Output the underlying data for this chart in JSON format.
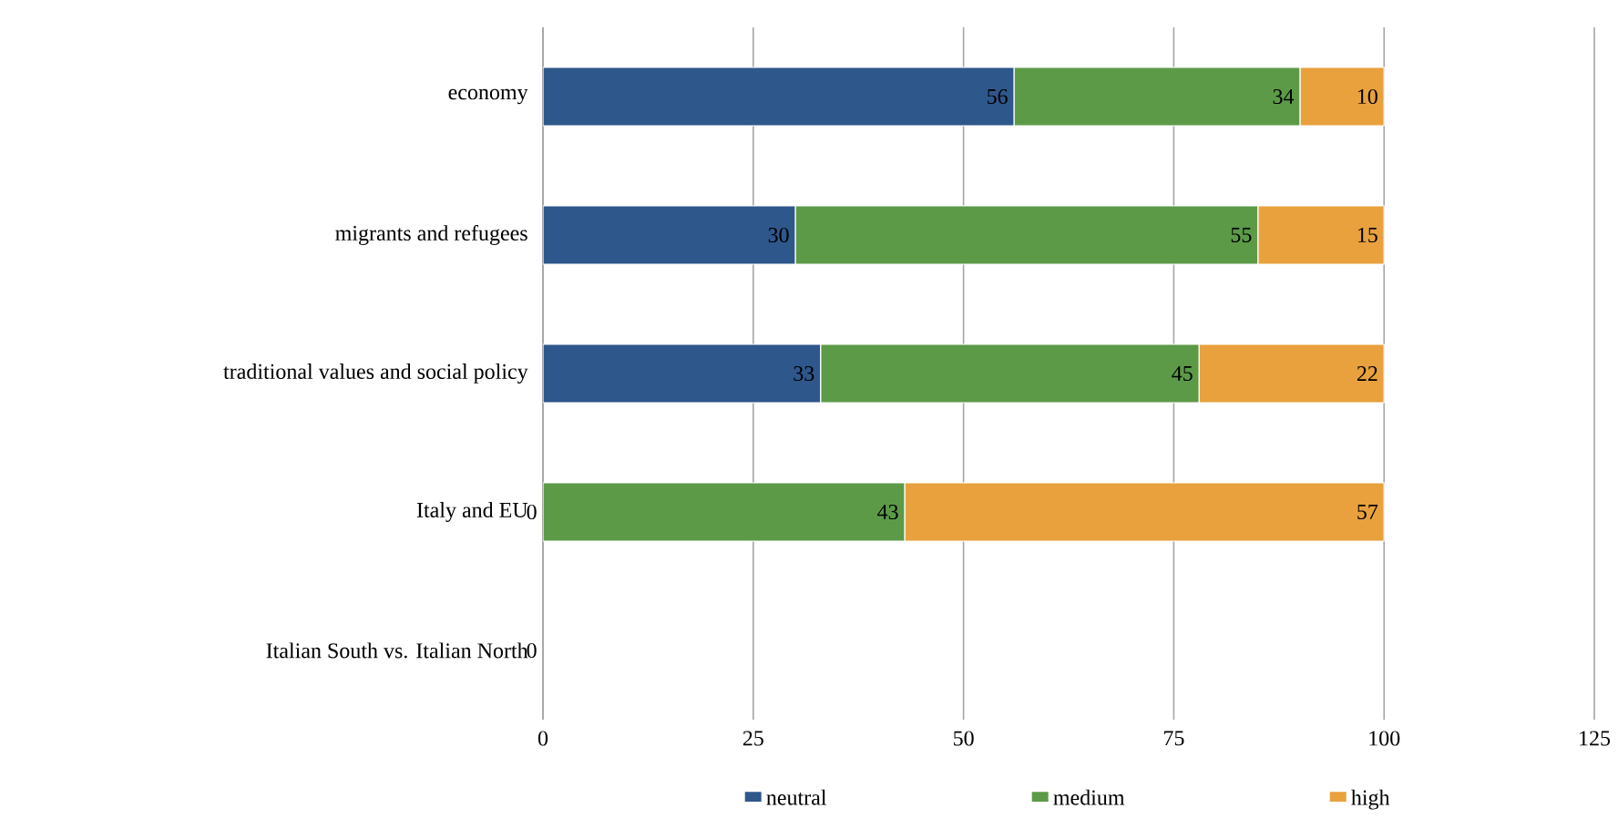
{
  "chart_data": {
    "type": "bar",
    "orientation": "horizontal",
    "stacked": true,
    "categories": [
      "economy",
      "migrants and refugees",
      "traditional values and social policy",
      "Italy and EU",
      "Italian South vs. Italian North"
    ],
    "series": [
      {
        "name": "neutral",
        "color": "#2e578c",
        "values": [
          56,
          30,
          33,
          0,
          0
        ],
        "value_labels": [
          "56",
          "30",
          "33",
          null,
          "0"
        ]
      },
      {
        "name": "medium",
        "color": "#5c9a48",
        "values": [
          34,
          55,
          45,
          43,
          0
        ],
        "value_labels": [
          "34",
          "55",
          "45",
          "43",
          null
        ]
      },
      {
        "name": "high",
        "color": "#e8a13d",
        "values": [
          10,
          15,
          22,
          57,
          0
        ],
        "value_labels": [
          "10",
          "15",
          "22",
          "57",
          null
        ]
      }
    ],
    "annotations": [
      {
        "text": "0",
        "x": 0,
        "y": "Italy and EU"
      }
    ],
    "xlim": [
      0,
      125
    ],
    "xticks": [
      0,
      25,
      50,
      75,
      100,
      125
    ],
    "grid": "x",
    "legend": "bottom"
  }
}
